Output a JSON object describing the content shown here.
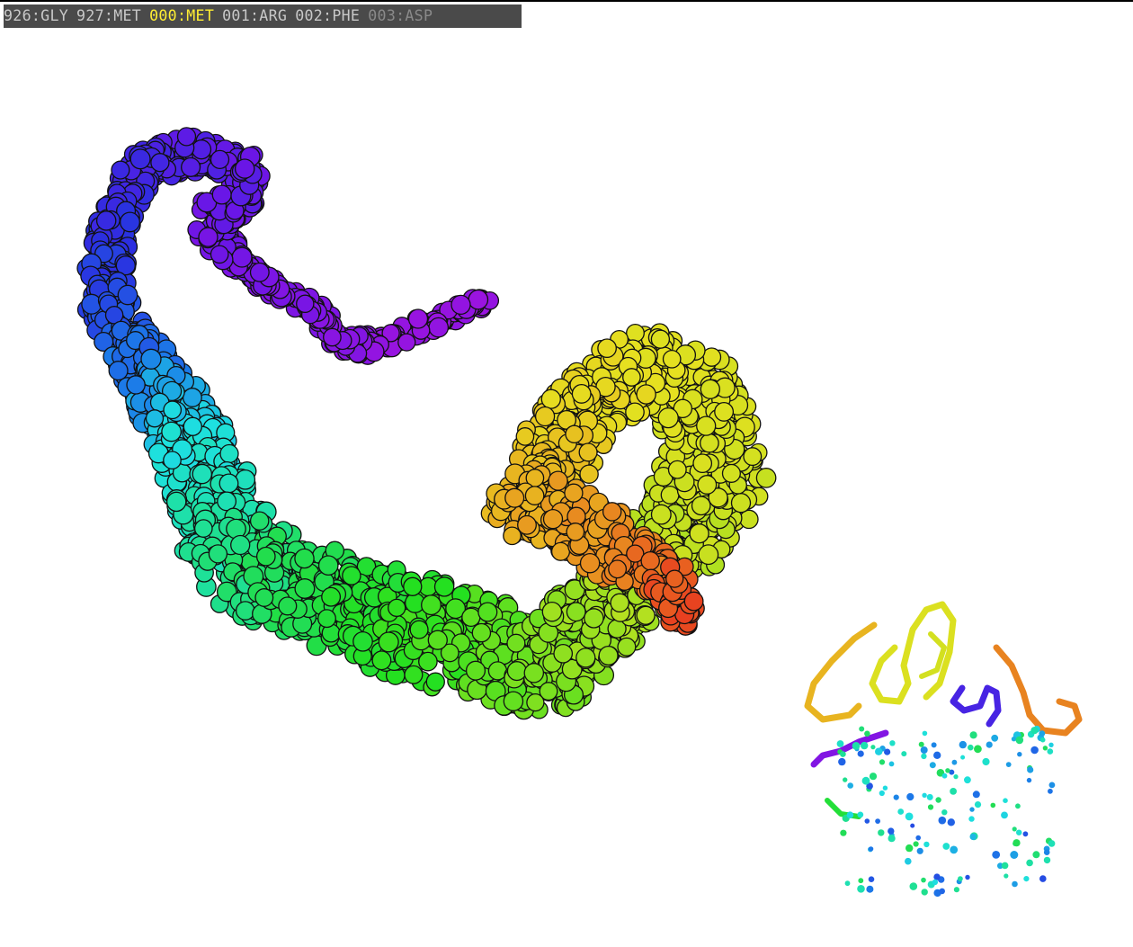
{
  "sequence_bar": {
    "residues": [
      {
        "label": "926:GLY",
        "color": "#c8c8c8"
      },
      {
        "label": "927:MET",
        "color": "#c8c8c8"
      },
      {
        "label": "000:MET",
        "color": "#ffee33"
      },
      {
        "label": "001:ARG",
        "color": "#c8c8c8"
      },
      {
        "label": "002:PHE",
        "color": "#c8c8c8"
      },
      {
        "label": "003:ASP",
        "color": "#8a8a8a"
      }
    ]
  },
  "viewer": {
    "background": "#ffffff",
    "main_view": "spacefill-rainbow",
    "inset_view": "cartoon-rainbow",
    "palette": [
      "#9a14e0",
      "#6b16e6",
      "#2a2fe0",
      "#1c7ae8",
      "#1ee0e0",
      "#1ee0a0",
      "#22dd50",
      "#24e020",
      "#7be020",
      "#c8e020",
      "#e6e020",
      "#e8b020",
      "#e87020",
      "#e82020"
    ]
  }
}
